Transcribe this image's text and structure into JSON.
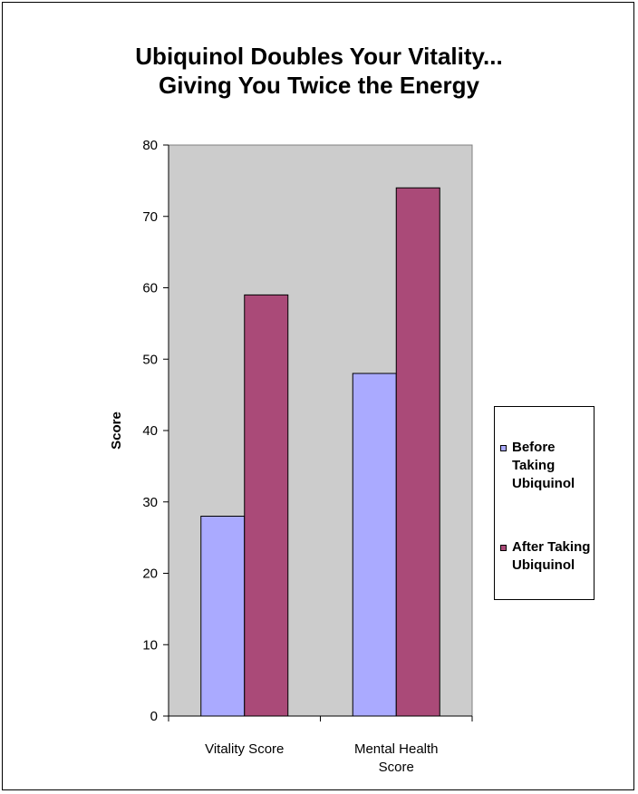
{
  "chart_data": {
    "type": "bar",
    "title_lines": [
      "Ubiquinol Doubles Your Vitality...",
      "Giving You Twice the Energy"
    ],
    "xlabel": "",
    "ylabel": "Score",
    "categories": [
      "Vitality Score",
      "Mental Health Score"
    ],
    "series": [
      {
        "name": "Before Taking Ubiquinol",
        "color": "#aaaaff",
        "values": [
          28,
          48
        ]
      },
      {
        "name": "After Taking Ubiquinol",
        "color": "#aa4a78",
        "values": [
          59,
          74
        ]
      }
    ],
    "ylim": [
      0,
      80
    ],
    "yticks": [
      0,
      10,
      20,
      30,
      40,
      50,
      60,
      70,
      80
    ],
    "plot_background": "#cccccc",
    "grid": false,
    "legend_position": "right"
  }
}
